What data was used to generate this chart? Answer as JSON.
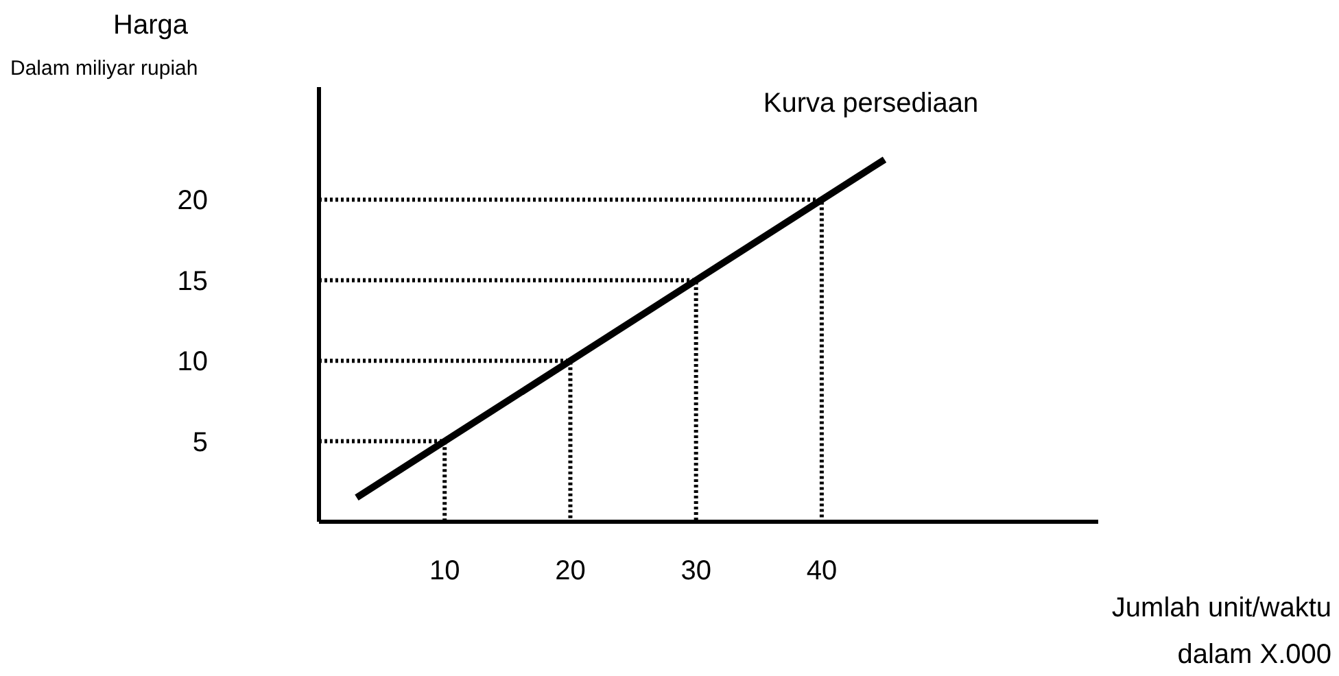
{
  "chart_data": {
    "type": "line",
    "ylabel": "Harga",
    "xlabel": "Jumlah unit/waktu",
    "annotations": [
      "Dalam miliyar rupiah",
      "dalam X.000"
    ],
    "xlim": [
      0,
      62
    ],
    "ylim": [
      0,
      27
    ],
    "xticks": [
      10,
      20,
      30,
      40
    ],
    "yticks": [
      5,
      10,
      15,
      20
    ],
    "grid": false,
    "marker": "none",
    "series": [
      {
        "name": "Kurva persediaan",
        "color": "#000000",
        "line_style": "solid",
        "x": [
          3,
          45
        ],
        "values": [
          1.5,
          22.5
        ]
      },
      {
        "color": "#000000",
        "line_style": "dotted",
        "x": [
          0,
          10,
          10,
          null,
          0,
          20,
          20,
          null,
          0,
          30,
          30,
          null,
          0,
          40,
          40
        ],
        "values": [
          5,
          5,
          0,
          null,
          10,
          10,
          0,
          null,
          15,
          15,
          0,
          null,
          20,
          20,
          0
        ]
      }
    ]
  }
}
